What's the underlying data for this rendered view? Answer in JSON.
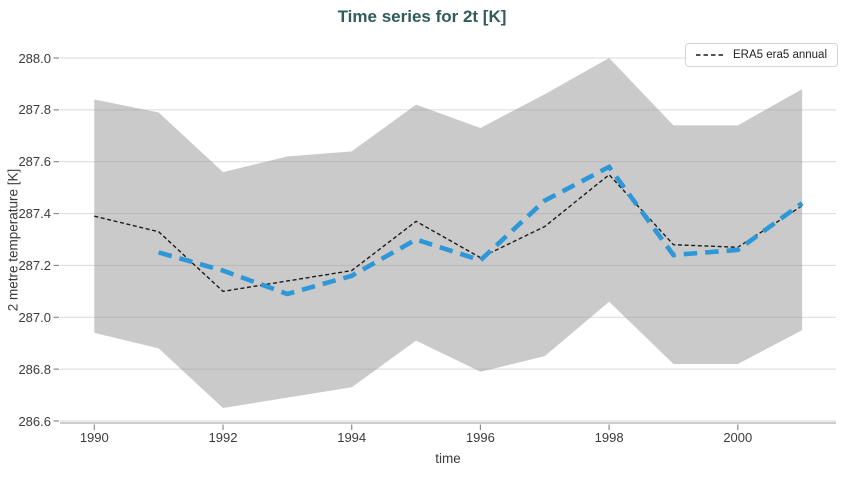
{
  "title": "Time series for 2t [K]",
  "legend": {
    "position": "top-right",
    "items": [
      {
        "label": "ERA5 era5 annual",
        "marker": "thin-black-dashed-line"
      }
    ]
  },
  "x_axis": {
    "label": "time",
    "ticklabels": [
      "1990",
      "1992",
      "1994",
      "1996",
      "1998",
      "2000"
    ]
  },
  "y_axis": {
    "label": "2 metre temperature [K]",
    "ticklabels": [
      "288.0",
      "287.8",
      "287.6",
      "287.4",
      "287.2",
      "287.0",
      "286.8",
      "286.6"
    ]
  },
  "colors": {
    "title": "#315b5b",
    "annual_line": "#1c1c1c",
    "smoothed_line": "#2d97d8",
    "band_fill": "rgba(150,150,150,0.5)",
    "gridline": "#d9d9d9",
    "axis_spine": "#bcbcbc",
    "tick_mark": "#8c8c8c",
    "tick_text": "#3b3b3b",
    "legend_border": "#d4d4d4"
  },
  "chart_data": {
    "type": "line",
    "title": "Time series for 2t [K]",
    "xlabel": "time",
    "ylabel": "2 metre temperature [K]",
    "xlim": [
      1989.47,
      2001.53
    ],
    "ylim": [
      286.6,
      288.0
    ],
    "xticks": [
      1990,
      1992,
      1994,
      1996,
      1998,
      2000
    ],
    "yticks": [
      288.0,
      287.8,
      287.6,
      287.4,
      287.2,
      287.0,
      286.8,
      286.6
    ],
    "grid": "horizontal-only",
    "legend_position": "top-right",
    "series": [
      {
        "name": "ERA5 era5 annual",
        "style": "thin-dashed",
        "color": "#1c1c1c",
        "x": [
          1990,
          1991,
          1992,
          1993,
          1994,
          1995,
          1996,
          1997,
          1998,
          1999,
          2000,
          2001
        ],
        "values": [
          287.39,
          287.33,
          287.1,
          287.14,
          287.18,
          287.37,
          287.23,
          287.35,
          287.55,
          287.28,
          287.27,
          287.43
        ]
      },
      {
        "name": "smoothed-trend-unlabeled",
        "style": "thick-dashed",
        "color": "#2d97d8",
        "x": [
          1991,
          1992,
          1993,
          1994,
          1995,
          1996,
          1997,
          1998,
          1999,
          2000,
          2001
        ],
        "values": [
          287.25,
          287.18,
          287.09,
          287.16,
          287.3,
          287.22,
          287.45,
          287.58,
          287.24,
          287.26,
          287.44
        ]
      }
    ],
    "band": {
      "name": "shaded-range-unlabeled",
      "fill": "rgba(150,150,150,0.5)",
      "x": [
        1990,
        1991,
        1992,
        1993,
        1994,
        1995,
        1996,
        1997,
        1998,
        1999,
        2000,
        2001
      ],
      "upper": [
        287.84,
        287.79,
        287.56,
        287.62,
        287.64,
        287.82,
        287.73,
        287.86,
        288.0,
        287.74,
        287.74,
        287.88
      ],
      "lower": [
        286.94,
        286.88,
        286.65,
        286.69,
        286.73,
        286.91,
        286.79,
        286.85,
        287.06,
        286.82,
        286.82,
        286.95
      ]
    }
  }
}
